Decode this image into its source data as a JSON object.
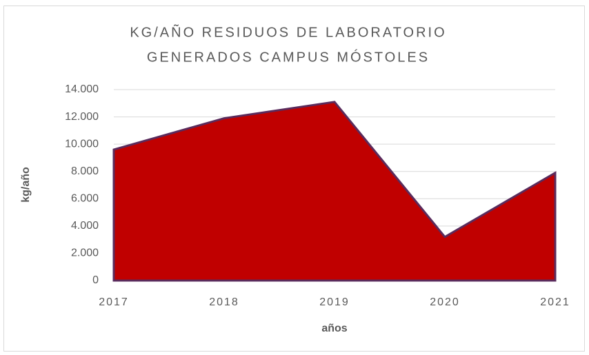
{
  "chart_data": {
    "type": "area",
    "title": [
      "KG/AÑO RESIDUOS DE LABORATORIO",
      "GENERADOS CAMPUS MÓSTOLES"
    ],
    "categories": [
      "2017",
      "2018",
      "2019",
      "2020",
      "2021"
    ],
    "values": [
      9600,
      11900,
      13100,
      3200,
      7900
    ],
    "color": "#c00000",
    "line_color": "#5a2b5c",
    "xlabel": "años",
    "ylabel": "kg/año",
    "ylim": [
      0,
      14000
    ],
    "yticks": [
      0,
      {
        "value": 2000,
        "label": "2.000"
      },
      {
        "value": 4000,
        "label": "4.000"
      },
      {
        "value": 6000,
        "label": "6.000"
      },
      {
        "value": 8000,
        "label": "8.000"
      },
      {
        "value": 10000,
        "label": "10.000"
      },
      {
        "value": 12000,
        "label": "12.000"
      },
      {
        "value": 14000,
        "label": "14.000"
      }
    ],
    "grid": true
  }
}
